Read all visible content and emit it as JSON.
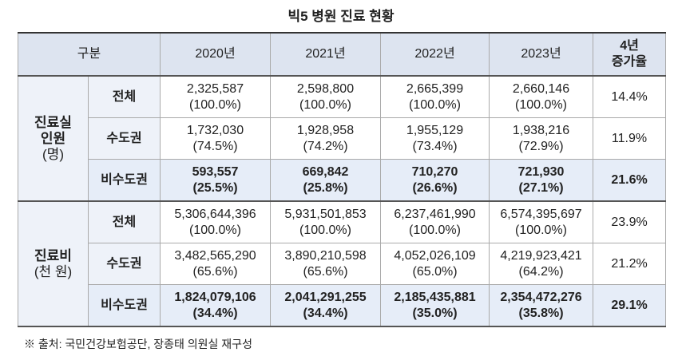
{
  "title": "빅5 병원 진료 현황",
  "table": {
    "header": {
      "category": "구분",
      "years": [
        "2020년",
        "2021년",
        "2022년",
        "2023년"
      ],
      "growth": [
        "4년",
        "증가율"
      ]
    },
    "groups": [
      {
        "label": [
          "진료실",
          "인원",
          "(명)"
        ],
        "rows": [
          {
            "label": "전체",
            "emphasis": false,
            "cells": [
              [
                "2,325,587",
                "(100.0%)"
              ],
              [
                "2,598,800",
                "(100.0%)"
              ],
              [
                "2,665,399",
                "(100.0%)"
              ],
              [
                "2,660,146",
                "(100.0%)"
              ]
            ],
            "growth": "14.4%"
          },
          {
            "label": "수도권",
            "emphasis": false,
            "cells": [
              [
                "1,732,030",
                "(74.5%)"
              ],
              [
                "1,928,958",
                "(74.2%)"
              ],
              [
                "1,955,129",
                "(73.4%)"
              ],
              [
                "1,938,216",
                "(72.9%)"
              ]
            ],
            "growth": "11.9%"
          },
          {
            "label": "비수도권",
            "emphasis": true,
            "cells": [
              [
                "593,557",
                "(25.5%)"
              ],
              [
                "669,842",
                "(25.8%)"
              ],
              [
                "710,270",
                "(26.6%)"
              ],
              [
                "721,930",
                "(27.1%)"
              ]
            ],
            "growth": "21.6%"
          }
        ]
      },
      {
        "label": [
          "진료비",
          "(천 원)"
        ],
        "rows": [
          {
            "label": "전체",
            "emphasis": false,
            "cells": [
              [
                "5,306,644,396",
                "(100.0%)"
              ],
              [
                "5,931,501,853",
                "(100.0%)"
              ],
              [
                "6,237,461,990",
                "(100.0%)"
              ],
              [
                "6,574,395,697",
                "(100.0%)"
              ]
            ],
            "growth": "23.9%"
          },
          {
            "label": "수도권",
            "emphasis": false,
            "cells": [
              [
                "3,482,565,290",
                "(65.6%)"
              ],
              [
                "3,890,210,598",
                "(65.6%)"
              ],
              [
                "4,052,026,109",
                "(65.0%)"
              ],
              [
                "4,219,923,421",
                "(64.2%)"
              ]
            ],
            "growth": "21.2%"
          },
          {
            "label": "비수도권",
            "emphasis": true,
            "cells": [
              [
                "1,824,079,106",
                "(34.4%)"
              ],
              [
                "2,041,291,255",
                "(34.4%)"
              ],
              [
                "2,185,435,881",
                "(35.0%)"
              ],
              [
                "2,354,472,276",
                "(35.8%)"
              ]
            ],
            "growth": "29.1%"
          }
        ]
      }
    ]
  },
  "footnote": "※ 출처: 국민건강보험공단, 장종태 의원실 재구성"
}
